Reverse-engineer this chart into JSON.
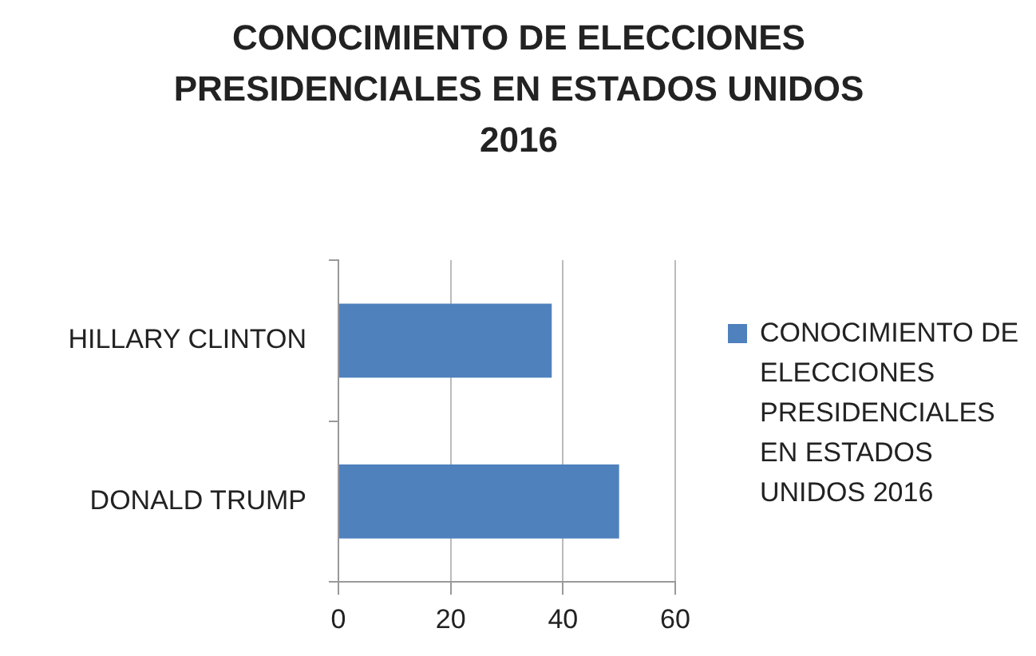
{
  "chart_data": {
    "type": "bar",
    "orientation": "horizontal",
    "title": "CONOCIMIENTO DE ELECCIONES PRESIDENCIALES EN ESTADOS UNIDOS 2016",
    "categories": [
      "HILLARY CLINTON",
      "DONALD TRUMP"
    ],
    "series": [
      {
        "name": "CONOCIMIENTO DE ELECCIONES PRESIDENCIALES EN ESTADOS UNIDOS 2016",
        "color": "#4f81bd",
        "values": [
          38,
          50
        ]
      }
    ],
    "xlim": [
      0,
      60
    ],
    "xticks": [
      0,
      20,
      40,
      60
    ],
    "grid": "x",
    "legend": "right"
  }
}
